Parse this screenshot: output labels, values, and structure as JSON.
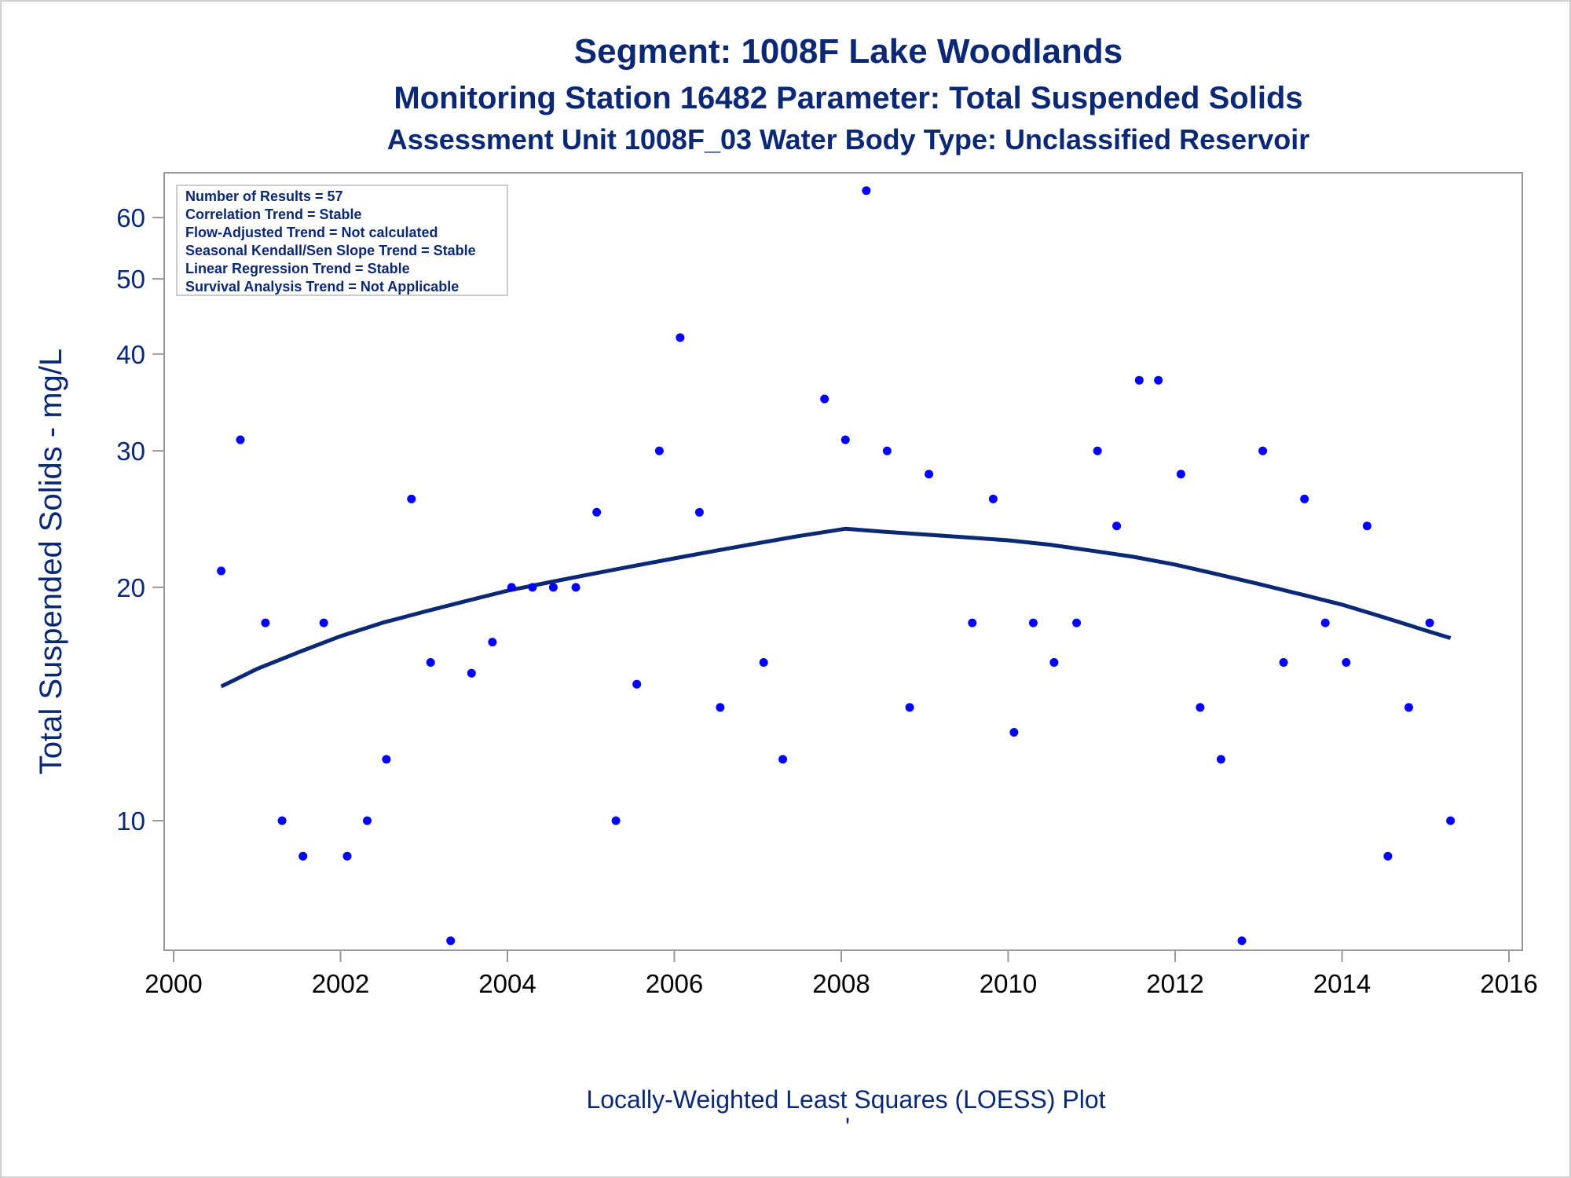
{
  "titles": {
    "line1": "Segment: 1008F  Lake Woodlands",
    "line2": "Monitoring Station 16482 Parameter: Total Suspended Solids",
    "line3": "Assessment Unit 1008F_03   Water Body Type: Unclassified Reservoir"
  },
  "stats_box": [
    "Number of Results = 57",
    "Correlation Trend = Stable",
    "Flow-Adjusted Trend = Not calculated",
    "Seasonal Kendall/Sen Slope Trend = Stable",
    "Linear Regression Trend = Stable",
    "Survival Analysis Trend = Not Applicable"
  ],
  "caption": "Locally-Weighted Least Squares (LOESS) Plot",
  "caption_mark": "'",
  "colors": {
    "points": "#0000ff",
    "loess_line": "#0b2874",
    "text": "#0b2874",
    "axis": "#999999"
  },
  "chart_data": {
    "type": "scatter",
    "ylabel": "Total Suspended Solids - mg/L",
    "y_scale": "log",
    "xlim": [
      2000,
      2016
    ],
    "ylim": [
      7.5,
      68
    ],
    "x_ticks": [
      2000,
      2002,
      2004,
      2006,
      2008,
      2010,
      2012,
      2014,
      2016
    ],
    "y_ticks": [
      10,
      20,
      30,
      40,
      50,
      60
    ],
    "grid": false,
    "legend": "none",
    "series": [
      {
        "kind": "points",
        "x": [
          2000.57,
          2000.8,
          2001.1,
          2001.3,
          2001.55,
          2001.8,
          2002.08,
          2002.32,
          2002.55,
          2002.85,
          2003.08,
          2003.32,
          2003.57,
          2003.82,
          2004.05,
          2004.3,
          2004.55,
          2004.82,
          2005.07,
          2005.3,
          2005.55,
          2005.82,
          2006.07,
          2006.3,
          2006.55,
          2007.07,
          2007.3,
          2007.8,
          2008.05,
          2008.3,
          2008.55,
          2008.82,
          2009.05,
          2009.57,
          2009.82,
          2010.07,
          2010.3,
          2010.55,
          2010.82,
          2011.07,
          2011.3,
          2011.57,
          2011.8,
          2012.07,
          2012.3,
          2012.55,
          2012.8,
          2013.05,
          2013.3,
          2013.55,
          2013.8,
          2014.05,
          2014.3,
          2014.55,
          2014.8,
          2015.05,
          2015.3
        ],
        "y": [
          21,
          31,
          18,
          10,
          9,
          18,
          9,
          10,
          12,
          26,
          16,
          7,
          15.5,
          17,
          20,
          20,
          20,
          20,
          25,
          10,
          15,
          30,
          42,
          25,
          14,
          16,
          12,
          35,
          31,
          65,
          30,
          14,
          28,
          18,
          26,
          13,
          18,
          16,
          18,
          30,
          24,
          37,
          37,
          28,
          14,
          12,
          7,
          30,
          16,
          26,
          18,
          16,
          24,
          9,
          14,
          18,
          10
        ]
      },
      {
        "kind": "loess",
        "x": [
          2000.57,
          2001.0,
          2001.5,
          2002.0,
          2002.5,
          2003.0,
          2003.5,
          2004.0,
          2004.5,
          2005.0,
          2005.5,
          2006.0,
          2006.5,
          2007.0,
          2007.5,
          2008.05,
          2008.5,
          2009.0,
          2009.5,
          2010.0,
          2010.5,
          2011.0,
          2011.5,
          2012.0,
          2012.5,
          2013.0,
          2013.5,
          2014.0,
          2014.5,
          2015.0,
          2015.3
        ],
        "y": [
          14.9,
          15.7,
          16.5,
          17.3,
          18.0,
          18.6,
          19.2,
          19.8,
          20.3,
          20.8,
          21.3,
          21.8,
          22.3,
          22.8,
          23.3,
          23.8,
          23.6,
          23.4,
          23.2,
          23.0,
          22.7,
          22.3,
          21.9,
          21.4,
          20.8,
          20.2,
          19.6,
          19.0,
          18.3,
          17.6,
          17.2
        ]
      }
    ]
  }
}
